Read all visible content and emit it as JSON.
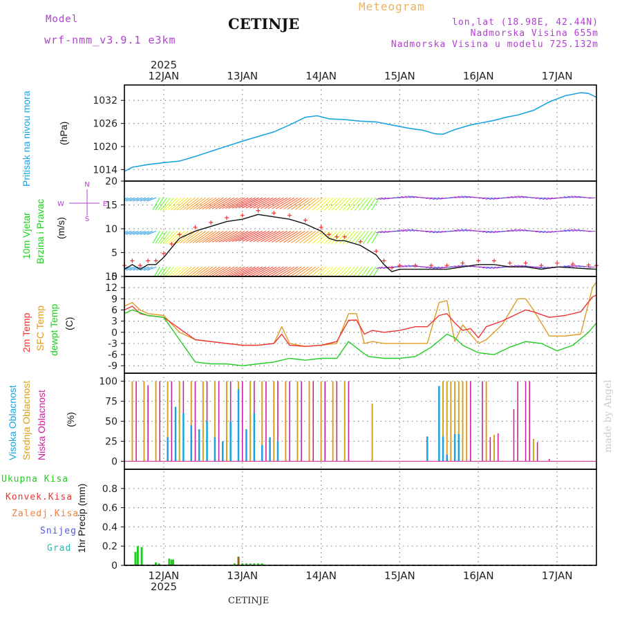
{
  "header": {
    "model_label": "Model",
    "model_name": "wrf-nmm_v3.9.1 e3km",
    "title": "CETINJE",
    "meteogram": "Meteogram",
    "lonlat": "lon,lat (18.98E, 42.44N)",
    "elevation": "Nadmorska Visina 655m",
    "model_elevation": "Nadmorska Visina u modelu 725.132m",
    "credit": "made by Angel",
    "footer": "CETINJE",
    "year_top": "2025",
    "year_bottom": "2025"
  },
  "colors": {
    "pressure": "#1aa3e0",
    "wind_label": "#22cc22",
    "temp2m": "#ee3333",
    "sfc": "#dd9a22",
    "dew": "#22cc22",
    "high_cloud": "#1aa3e0",
    "mid_cloud": "#d8a020",
    "low_cloud": "#cc2299",
    "violet": "#b040d0",
    "orange": "#f0a030"
  },
  "chart_data": {
    "type": "meteogram",
    "x_axis": {
      "unit": "days since 11 JAN 2025 00Z",
      "range": [
        11.5,
        17.5
      ],
      "tick_labels": [
        "12JAN",
        "13JAN",
        "14JAN",
        "15JAN",
        "16JAN",
        "17JAN"
      ],
      "tick_positions": [
        12,
        13,
        14,
        15,
        16,
        17
      ]
    },
    "panels": [
      {
        "id": "pressure",
        "type": "line",
        "labels": [
          "Pritisak na nivou mora",
          "(hPa)"
        ],
        "ylim": [
          1011,
          1036
        ],
        "yticks": [
          1014,
          1020,
          1026,
          1032
        ],
        "series": [
          {
            "name": "MSLP",
            "x": [
              11.5,
              11.6,
              11.8,
              12.0,
              12.2,
              12.4,
              12.7,
              13.0,
              13.2,
              13.4,
              13.6,
              13.8,
              13.95,
              14.1,
              14.3,
              14.5,
              14.7,
              14.9,
              15.1,
              15.3,
              15.45,
              15.55,
              15.7,
              15.9,
              16.05,
              16.2,
              16.35,
              16.5,
              16.7,
              16.9,
              17.1,
              17.3,
              17.4,
              17.5
            ],
            "y": [
              1013.5,
              1014.6,
              1015.3,
              1015.8,
              1016.2,
              1017.4,
              1019.4,
              1021.4,
              1022.6,
              1023.8,
              1025.6,
              1027.6,
              1028.0,
              1027.2,
              1027.0,
              1026.6,
              1026.4,
              1025.6,
              1024.8,
              1024.2,
              1023.3,
              1023.2,
              1024.4,
              1025.6,
              1026.2,
              1026.8,
              1027.6,
              1028.2,
              1029.4,
              1031.6,
              1033.2,
              1034.0,
              1033.8,
              1032.8
            ]
          }
        ]
      },
      {
        "id": "wind",
        "type": "line+barbs",
        "labels": [
          "10m Vjetar",
          "Brzina i Pravac",
          "(m/s)"
        ],
        "compass": [
          "N",
          "E",
          "S",
          "W"
        ],
        "ylim": [
          0,
          20
        ],
        "yticks": [
          0,
          5,
          10,
          15,
          20
        ],
        "series": [
          {
            "name": "10m wind speed",
            "x": [
              11.5,
              11.6,
              11.7,
              11.8,
              11.9,
              12.0,
              12.1,
              12.2,
              12.4,
              12.6,
              12.8,
              13.0,
              13.2,
              13.4,
              13.6,
              13.8,
              14.0,
              14.1,
              14.2,
              14.3,
              14.5,
              14.7,
              14.8,
              14.9,
              15.0,
              15.2,
              15.4,
              15.6,
              15.8,
              16.0,
              16.2,
              16.4,
              16.6,
              16.8,
              17.0,
              17.2,
              17.4,
              17.5
            ],
            "y": [
              1.5,
              2.5,
              1.5,
              2.5,
              2.5,
              4.0,
              6.0,
              8.0,
              9.5,
              10.5,
              11.5,
              12.0,
              13.0,
              12.5,
              12.0,
              11.0,
              9.5,
              8.0,
              7.5,
              7.5,
              6.5,
              4.5,
              2.5,
              1.0,
              1.5,
              1.5,
              1.5,
              1.5,
              2.0,
              2.5,
              2.5,
              2.0,
              2.0,
              1.5,
              2.0,
              1.8,
              1.6,
              1.5
            ]
          }
        ]
      },
      {
        "id": "temperature",
        "type": "line",
        "labels": [
          "2m Temp",
          "SFC Temp",
          "dewpt Temp",
          "(C)"
        ],
        "ylim": [
          -11,
          15
        ],
        "yticks": [
          -9,
          -6,
          -3,
          0,
          3,
          6,
          9,
          12,
          15
        ],
        "series": [
          {
            "name": "2m Temp",
            "x": [
              11.5,
              11.6,
              11.7,
              11.8,
              12.0,
              12.2,
              12.4,
              12.6,
              12.8,
              13.0,
              13.2,
              13.4,
              13.5,
              13.6,
              13.8,
              14.0,
              14.2,
              14.35,
              14.45,
              14.55,
              14.65,
              14.8,
              15.0,
              15.2,
              15.35,
              15.5,
              15.6,
              15.7,
              15.8,
              15.9,
              16.0,
              16.1,
              16.3,
              16.5,
              16.6,
              16.7,
              16.9,
              17.1,
              17.3,
              17.45,
              17.5
            ],
            "y": [
              6,
              7,
              5,
              4.5,
              4,
              1,
              -2,
              -2.5,
              -3,
              -3.5,
              -3.5,
              -3,
              -0.5,
              -3.5,
              -3.8,
              -3.5,
              -2.5,
              3.2,
              3.3,
              -0.5,
              0.5,
              0,
              0.5,
              1.5,
              1.5,
              4.5,
              5,
              2.5,
              0.5,
              1,
              -1.5,
              1.5,
              3,
              5,
              6,
              5.5,
              4,
              4.5,
              5.5,
              9.5,
              10
            ]
          },
          {
            "name": "SFC Temp",
            "x": [
              11.5,
              11.6,
              11.7,
              11.8,
              12.0,
              12.2,
              12.4,
              12.6,
              12.8,
              13.0,
              13.2,
              13.4,
              13.5,
              13.6,
              13.8,
              14.0,
              14.2,
              14.35,
              14.45,
              14.55,
              14.65,
              14.8,
              15.0,
              15.2,
              15.35,
              15.5,
              15.6,
              15.7,
              15.8,
              15.9,
              16.0,
              16.1,
              16.3,
              16.5,
              16.6,
              16.7,
              16.9,
              17.1,
              17.3,
              17.45,
              17.5
            ],
            "y": [
              7,
              8,
              6,
              5,
              4.5,
              0,
              -2,
              -2.5,
              -3,
              -3.5,
              -3.5,
              -3,
              1.5,
              -3,
              -3.8,
              -3.5,
              -3,
              5,
              5,
              -3,
              -2.5,
              -3,
              -3,
              -3,
              -3,
              8,
              8.5,
              -2.5,
              2,
              -0.5,
              -3,
              -2,
              2,
              9,
              9,
              6,
              -1,
              -1,
              -0.5,
              12,
              13.5
            ]
          },
          {
            "name": "dewpt Temp",
            "x": [
              11.5,
              11.6,
              11.8,
              12.0,
              12.2,
              12.4,
              12.6,
              12.8,
              13.0,
              13.2,
              13.4,
              13.6,
              13.8,
              14.0,
              14.2,
              14.35,
              14.5,
              14.6,
              14.8,
              15.0,
              15.2,
              15.4,
              15.6,
              15.7,
              15.8,
              16.0,
              16.2,
              16.4,
              16.6,
              16.8,
              17.0,
              17.2,
              17.4,
              17.5
            ],
            "y": [
              5,
              6,
              4.5,
              4,
              -2,
              -8,
              -8.5,
              -8.5,
              -9,
              -8.5,
              -8,
              -7,
              -7.5,
              -7,
              -7,
              -2.5,
              -5,
              -6.5,
              -7,
              -7,
              -6.5,
              -4,
              -0.5,
              -1.5,
              -3.5,
              -5.5,
              -6,
              -4,
              -2.5,
              -3,
              -5,
              -3.5,
              0,
              2.5
            ]
          }
        ]
      },
      {
        "id": "cloud",
        "type": "bar",
        "labels": [
          "Visoka Oblacnost",
          "Srednja Oblacnost",
          "Niska Oblacnost",
          "(%)"
        ],
        "ylim": [
          -10,
          110
        ],
        "yticks": [
          0,
          25,
          50,
          75,
          100
        ],
        "series": [
          {
            "name": "Visoka Oblacnost",
            "x": [
              12.05,
              12.15,
              12.25,
              12.35,
              12.45,
              12.55,
              12.65,
              12.75,
              12.85,
              12.95,
              13.05,
              13.15,
              13.25,
              13.35,
              13.45,
              15.35,
              15.5,
              15.55,
              15.6,
              15.7,
              15.75
            ],
            "y": [
              30,
              68,
              60,
              45,
              40,
              50,
              30,
              25,
              50,
              90,
              40,
              60,
              20,
              30,
              25,
              31,
              94,
              31,
              8,
              34,
              34
            ]
          },
          {
            "name": "Srednja Oblacnost",
            "x": [
              11.6,
              11.75,
              11.9,
              12.05,
              12.2,
              12.35,
              12.5,
              12.65,
              12.8,
              12.95,
              13.1,
              13.25,
              13.4,
              13.55,
              13.7,
              13.85,
              14.0,
              14.15,
              14.3,
              14.65,
              15.55,
              15.6,
              15.65,
              15.7,
              15.75,
              15.8,
              15.85,
              16.1,
              16.2,
              16.7
            ],
            "y": [
              100,
              100,
              100,
              100,
              100,
              100,
              100,
              100,
              100,
              100,
              100,
              100,
              100,
              100,
              100,
              100,
              100,
              100,
              100,
              72,
              100,
              100,
              100,
              100,
              100,
              100,
              100,
              100,
              33,
              28
            ]
          },
          {
            "name": "Niska Oblacnost",
            "x": [
              11.65,
              11.8,
              11.95,
              12.1,
              12.25,
              12.4,
              12.55,
              12.7,
              12.85,
              13.0,
              13.15,
              13.3,
              13.45,
              13.6,
              13.75,
              13.9,
              14.05,
              14.2,
              14.35,
              15.9,
              16.05,
              16.15,
              16.25,
              16.45,
              16.5,
              16.6,
              16.65,
              16.75,
              16.9
            ],
            "y": [
              100,
              95,
              100,
              100,
              100,
              100,
              100,
              100,
              100,
              100,
              100,
              100,
              100,
              100,
              100,
              100,
              100,
              100,
              100,
              100,
              100,
              30,
              35,
              65,
              100,
              100,
              100,
              24,
              3
            ]
          }
        ]
      },
      {
        "id": "precip",
        "type": "bar",
        "labels": [
          "1hr Precip (mm)"
        ],
        "legend": [
          "Ukupna Kisa",
          "Konvek.Kisa",
          "Zaledj.Kisa",
          "Snijeg",
          "Grad"
        ],
        "ylim": [
          0,
          1.0
        ],
        "yticks": [
          0,
          0.2,
          0.4,
          0.6,
          0.8
        ],
        "series": [
          {
            "name": "Ukupna Kisa",
            "x": [
              11.64,
              11.67,
              11.72,
              11.9,
              11.94,
              12.07,
              12.1,
              12.12,
              12.9,
              12.95,
              13.0,
              13.05,
              13.1,
              13.15,
              13.2,
              13.25
            ],
            "y": [
              0.14,
              0.2,
              0.19,
              0.03,
              0.02,
              0.07,
              0.06,
              0.06,
              0.02,
              0.03,
              0.02,
              0.02,
              0.02,
              0.02,
              0.02,
              0.02
            ]
          },
          {
            "name": "Snijeg",
            "x": [
              12.95
            ],
            "y": [
              0.09
            ]
          }
        ]
      }
    ]
  }
}
